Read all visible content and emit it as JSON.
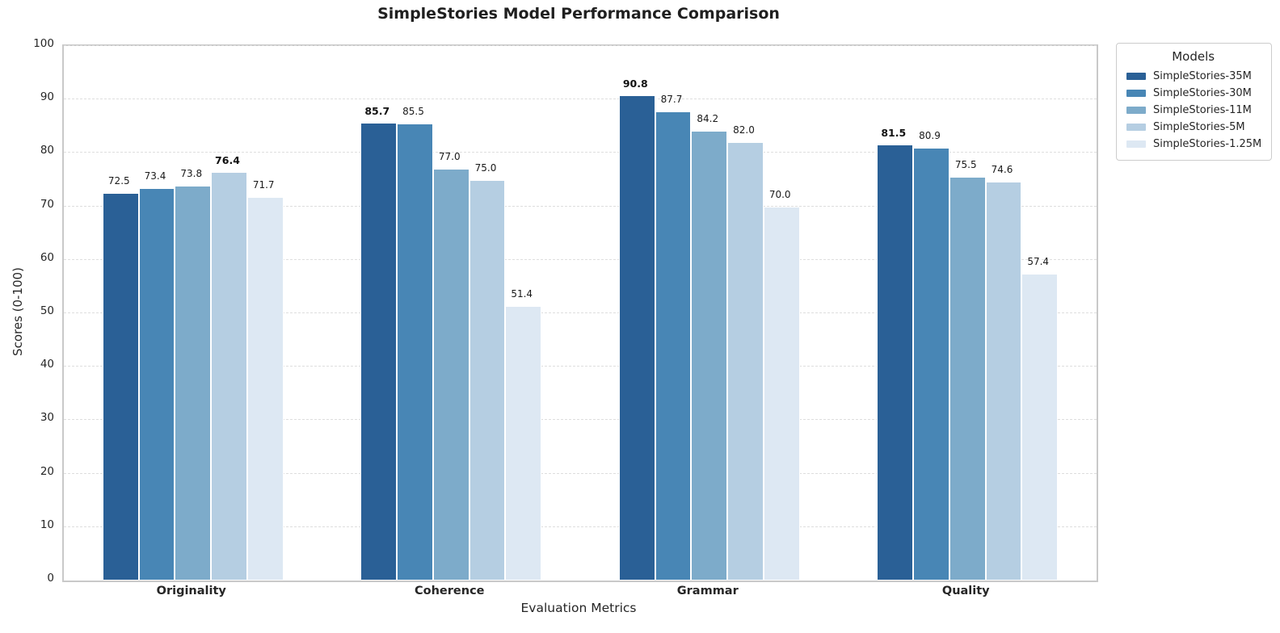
{
  "title": "SimpleStories Model Performance Comparison",
  "axes": {
    "xlabel": "Evaluation Metrics",
    "ylabel": "Scores (0-100)"
  },
  "legend": {
    "title": "Models"
  },
  "chart_data": {
    "type": "bar",
    "title": "SimpleStories Model Performance Comparison",
    "xlabel": "Evaluation Metrics",
    "ylabel": "Scores (0-100)",
    "categories": [
      "Originality",
      "Coherence",
      "Grammar",
      "Quality"
    ],
    "series": [
      {
        "name": "SimpleStories-35M",
        "color": "#2a6096",
        "values": [
          72.5,
          85.7,
          90.8,
          81.5
        ]
      },
      {
        "name": "SimpleStories-30M",
        "color": "#4886b5",
        "values": [
          73.4,
          85.5,
          87.7,
          80.9
        ]
      },
      {
        "name": "SimpleStories-11M",
        "color": "#7dabca",
        "values": [
          73.8,
          77.0,
          84.2,
          75.5
        ]
      },
      {
        "name": "SimpleStories-5M",
        "color": "#b5cee2",
        "values": [
          76.4,
          75.0,
          82.0,
          74.6
        ]
      },
      {
        "name": "SimpleStories-1.25M",
        "color": "#dde8f3",
        "values": [
          71.7,
          51.4,
          70.0,
          57.4
        ]
      }
    ],
    "ylim": [
      0,
      100
    ],
    "yticks": [
      0,
      10,
      20,
      30,
      40,
      50,
      60,
      70,
      80,
      90,
      100
    ],
    "value_label_decimals": 1,
    "bold_labels_on_category_max": true,
    "legend_title": "Models",
    "legend_position": "outside-upper-right",
    "grid": "horizontal-dashed"
  }
}
